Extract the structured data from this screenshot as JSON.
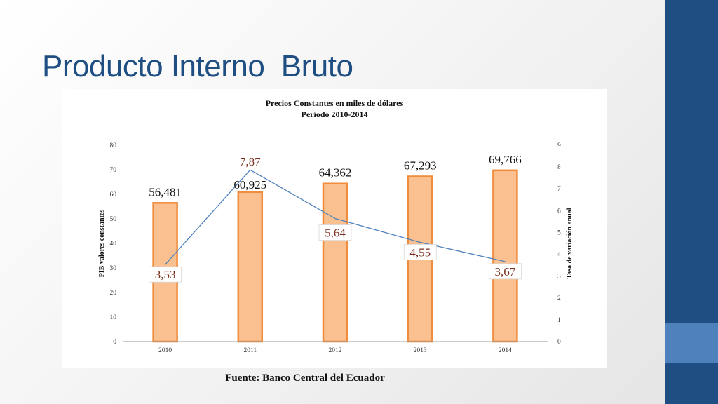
{
  "slide": {
    "title": "Producto Interno  Bruto",
    "source": "Fuente: Banco Central del Ecuador"
  },
  "colors": {
    "title": "#1f4e82",
    "side_band": "#1f4e82",
    "side_accent": "#4f81bd",
    "bar_fill": "#fac090",
    "bar_border": "#f08c3c",
    "line": "#4f81bd",
    "rate_label": "#7b2e1e"
  },
  "chart_data": {
    "type": "bar",
    "title": "Precios Constantes en miles de dólares",
    "subtitle": "Período 2010-2014",
    "categories": [
      "2010",
      "2011",
      "2012",
      "2013",
      "2014"
    ],
    "ylabel": "PIB valores constantes",
    "y2label": "Tasa de  variación anual",
    "ylim": [
      0,
      80
    ],
    "y_ticks": [
      "0",
      "10",
      "20",
      "30",
      "40",
      "50",
      "60",
      "70",
      "80"
    ],
    "y2lim": [
      0,
      9
    ],
    "y2_ticks": [
      "0",
      "1",
      "2",
      "3",
      "4",
      "5",
      "6",
      "7",
      "8",
      "9"
    ],
    "grid": false,
    "series": [
      {
        "type": "bar",
        "axis": "left",
        "values": [
          56.481,
          60.925,
          64.362,
          67.293,
          69.766
        ],
        "labels": [
          "56,481",
          "60,925",
          "64,362",
          "67,293",
          "69,766"
        ]
      },
      {
        "type": "line",
        "axis": "right",
        "values": [
          3.53,
          7.87,
          5.64,
          4.55,
          3.67
        ],
        "labels": [
          "3,53",
          "7,87",
          "5,64",
          "4,55",
          "3,67"
        ]
      }
    ]
  }
}
